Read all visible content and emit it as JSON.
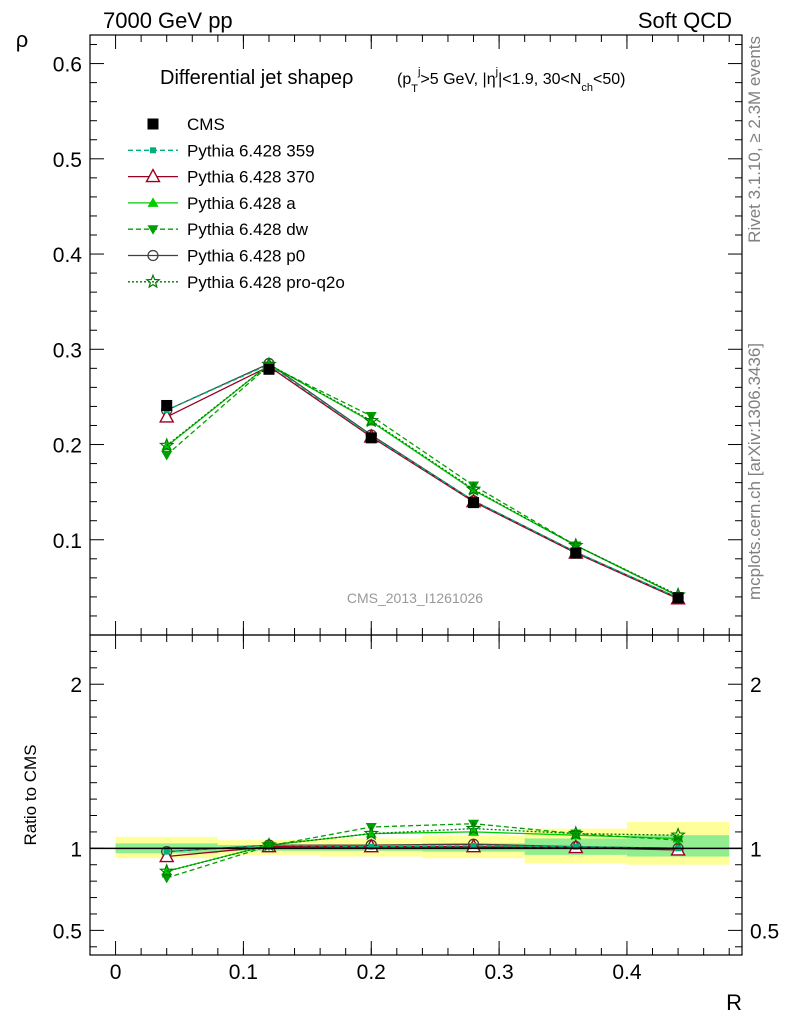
{
  "header": {
    "energy": "7000 GeV pp",
    "category": "Soft QCD"
  },
  "side_text": {
    "rivet": "Rivet 3.1.10, ≥ 2.3M events",
    "source": "mcplots.cern.ch [arXiv:1306.3436]"
  },
  "watermark": "CMS_2013_I1261026",
  "title": {
    "main": "Differential jet shapeρ",
    "selection": "(p_T^j>5 GeV, |η^j|<1.9, 30<N_ch<50)"
  },
  "colors": {
    "cms": "#000000",
    "p359": "#00b07a",
    "p370": "#9b0020",
    "pa": "#00cc00",
    "pdw": "#00a000",
    "pp0": "#404040",
    "pq2o": "#007a00",
    "band_yellow": "#ffff99",
    "band_green": "#90ee90"
  },
  "chart_data": [
    {
      "type": "line",
      "panel": "main",
      "xlabel": "",
      "ylabel": "ρ",
      "xlim": [
        -0.02,
        0.49
      ],
      "ylim": [
        0,
        0.63
      ],
      "yticks": [
        {
          "v": 0.1,
          "label": "0.1"
        },
        {
          "v": 0.2,
          "label": "0.2"
        },
        {
          "v": 0.3,
          "label": "0.3"
        },
        {
          "v": 0.4,
          "label": "0.4"
        },
        {
          "v": 0.5,
          "label": "0.5"
        },
        {
          "v": 0.6,
          "label": "0.6"
        }
      ],
      "x": [
        0.04,
        0.12,
        0.2,
        0.28,
        0.36,
        0.44
      ],
      "legend_position": "upper-left",
      "series": [
        {
          "key": "cms",
          "name": "CMS",
          "marker": "square",
          "line": "none",
          "values": [
            0.241,
            0.279,
            0.207,
            0.139,
            0.086,
            0.039
          ]
        },
        {
          "key": "p359",
          "name": "Pythia 6.428 359",
          "marker": "small-square",
          "line": "dashed",
          "values": [
            0.236,
            0.284,
            0.209,
            0.141,
            0.087,
            0.039
          ]
        },
        {
          "key": "p370",
          "name": "Pythia 6.428 370",
          "marker": "open-triangle",
          "line": "solid",
          "values": [
            0.229,
            0.282,
            0.208,
            0.14,
            0.086,
            0.038
          ]
        },
        {
          "key": "pa",
          "name": "Pythia 6.428 a",
          "marker": "triangle",
          "line": "solid",
          "values": [
            0.198,
            0.284,
            0.224,
            0.152,
            0.094,
            0.041
          ]
        },
        {
          "key": "pdw",
          "name": "Pythia 6.428 dw",
          "marker": "triangle-down",
          "line": "dashed",
          "values": [
            0.189,
            0.283,
            0.23,
            0.157,
            0.094,
            0.041
          ]
        },
        {
          "key": "pp0",
          "name": "Pythia 6.428 p0",
          "marker": "open-circle",
          "line": "solid",
          "values": [
            0.236,
            0.285,
            0.21,
            0.141,
            0.087,
            0.039
          ]
        },
        {
          "key": "pq2o",
          "name": "Pythia 6.428 pro-q2o",
          "marker": "star",
          "line": "dotted",
          "values": [
            0.199,
            0.284,
            0.225,
            0.153,
            0.094,
            0.042
          ]
        }
      ]
    },
    {
      "type": "line",
      "panel": "ratio",
      "xlabel": "R",
      "ylabel": "Ratio to CMS",
      "xlim": [
        -0.02,
        0.49
      ],
      "ylim": [
        0.35,
        2.3
      ],
      "yticks": [
        {
          "v": 0.5,
          "label": "0.5"
        },
        {
          "v": 1,
          "label": "1"
        },
        {
          "v": 2,
          "label": "2"
        }
      ],
      "xticks": [
        {
          "v": 0,
          "label": "0"
        },
        {
          "v": 0.1,
          "label": "0.1"
        },
        {
          "v": 0.2,
          "label": "0.2"
        },
        {
          "v": 0.3,
          "label": "0.3"
        },
        {
          "v": 0.4,
          "label": "0.4"
        }
      ],
      "x": [
        0.04,
        0.12,
        0.2,
        0.28,
        0.36,
        0.44
      ],
      "bins": [
        [
          0.0,
          0.08
        ],
        [
          0.08,
          0.16
        ],
        [
          0.16,
          0.24
        ],
        [
          0.24,
          0.32
        ],
        [
          0.32,
          0.4
        ],
        [
          0.4,
          0.48
        ]
      ],
      "band_outer": [
        [
          0.94,
          1.07
        ],
        [
          0.96,
          1.05
        ],
        [
          0.95,
          1.06
        ],
        [
          0.94,
          1.08
        ],
        [
          0.91,
          1.12
        ],
        [
          0.9,
          1.16
        ]
      ],
      "band_inner": [
        [
          0.97,
          1.03
        ],
        [
          0.985,
          1.02
        ],
        [
          0.985,
          1.02
        ],
        [
          0.98,
          1.03
        ],
        [
          0.96,
          1.06
        ],
        [
          0.95,
          1.08
        ]
      ],
      "series": [
        {
          "key": "cms",
          "name": "CMS",
          "marker": "none",
          "line": "solid",
          "values": [
            1,
            1,
            1,
            1,
            1,
            1
          ]
        },
        {
          "key": "p359",
          "name": "Pythia 6.428 359",
          "marker": "small-square",
          "line": "dashed",
          "values": [
            0.98,
            1.02,
            1.01,
            1.015,
            1.01,
            1.0
          ]
        },
        {
          "key": "p370",
          "name": "Pythia 6.428 370",
          "marker": "open-triangle",
          "line": "solid",
          "values": [
            0.95,
            1.01,
            1.01,
            1.01,
            1.005,
            0.99
          ]
        },
        {
          "key": "pa",
          "name": "Pythia 6.428 a",
          "marker": "triangle",
          "line": "solid",
          "values": [
            0.86,
            1.02,
            1.09,
            1.1,
            1.08,
            1.06
          ]
        },
        {
          "key": "pdw",
          "name": "Pythia 6.428 dw",
          "marker": "triangle-down",
          "line": "dashed",
          "values": [
            0.82,
            1.015,
            1.13,
            1.15,
            1.09,
            1.05
          ]
        },
        {
          "key": "pp0",
          "name": "Pythia 6.428 p0",
          "marker": "open-circle",
          "line": "solid",
          "values": [
            0.98,
            1.02,
            1.02,
            1.025,
            1.01,
            1.0
          ]
        },
        {
          "key": "pq2o",
          "name": "Pythia 6.428 pro-q2o",
          "marker": "star",
          "line": "dotted",
          "values": [
            0.86,
            1.02,
            1.09,
            1.12,
            1.09,
            1.08
          ]
        }
      ]
    }
  ]
}
